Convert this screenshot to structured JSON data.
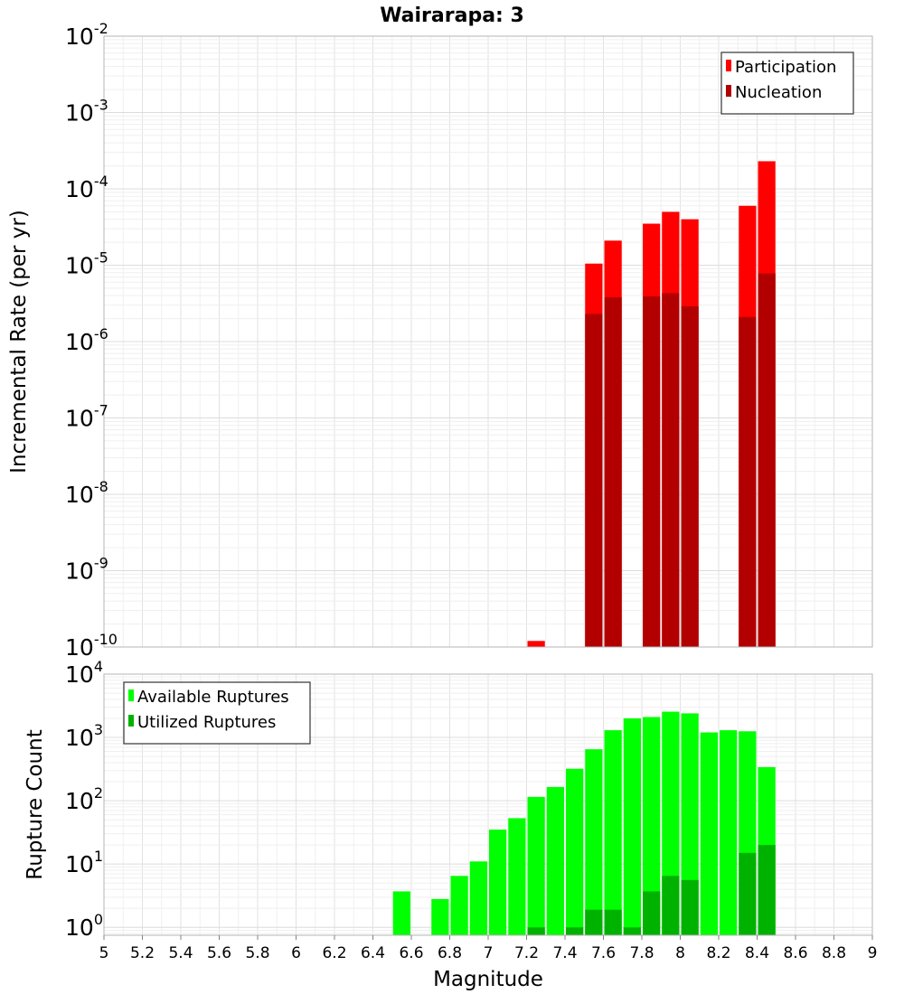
{
  "chart_data": {
    "title": "Wairarapa: 3",
    "xlabel": "Magnitude",
    "xlim": [
      5,
      9
    ],
    "x_ticks": [
      "5",
      "5.2",
      "5.4",
      "5.6",
      "5.8",
      "6",
      "6.2",
      "6.4",
      "6.6",
      "6.8",
      "7",
      "7.2",
      "7.4",
      "7.6",
      "7.8",
      "8",
      "8.2",
      "8.4",
      "8.6",
      "8.8",
      "9"
    ],
    "bin_width": 0.1,
    "grid": true,
    "panels": [
      {
        "type": "bar",
        "y_scale": "log",
        "ylabel": "Incremental Rate (per yr)",
        "ylim": [
          1e-10,
          0.01
        ],
        "y_ticks": [
          {
            "base": "10",
            "exp": "-10"
          },
          {
            "base": "10",
            "exp": "-9"
          },
          {
            "base": "10",
            "exp": "-8"
          },
          {
            "base": "10",
            "exp": "-7"
          },
          {
            "base": "10",
            "exp": "-6"
          },
          {
            "base": "10",
            "exp": "-5"
          },
          {
            "base": "10",
            "exp": "-4"
          },
          {
            "base": "10",
            "exp": "-3"
          },
          {
            "base": "10",
            "exp": "-2"
          }
        ],
        "legend_position": "top-right",
        "series": [
          {
            "name": "Participation",
            "color": "#ff0000",
            "x": [
              7.25,
              7.55,
              7.65,
              7.85,
              7.95,
              8.05,
              8.35,
              8.45
            ],
            "values": [
              1.2e-10,
              1.05e-05,
              2.1e-05,
              3.5e-05,
              5e-05,
              4e-05,
              6e-05,
              0.00023
            ]
          },
          {
            "name": "Nucleation",
            "color": "#b20000",
            "x": [
              7.55,
              7.65,
              7.85,
              7.95,
              8.05,
              8.35,
              8.45
            ],
            "values": [
              2.3e-06,
              3.8e-06,
              3.9e-06,
              4.3e-06,
              2.9e-06,
              2.1e-06,
              7.8e-06
            ]
          }
        ]
      },
      {
        "type": "bar",
        "y_scale": "log",
        "ylabel": "Rupture Count",
        "ylim": [
          0.75,
          10000
        ],
        "y_ticks": [
          {
            "base": "10",
            "exp": "0",
            "value": 1
          },
          {
            "base": "10",
            "exp": "1",
            "value": 10
          },
          {
            "base": "10",
            "exp": "2",
            "value": 100
          },
          {
            "base": "10",
            "exp": "3",
            "value": 1000
          },
          {
            "base": "10",
            "exp": "4",
            "value": 10000
          }
        ],
        "legend_position": "top-left",
        "series": [
          {
            "name": "Available Ruptures",
            "color": "#00ff00",
            "x": [
              6.55,
              6.75,
              6.85,
              6.95,
              7.05,
              7.15,
              7.25,
              7.35,
              7.45,
              7.55,
              7.65,
              7.75,
              7.85,
              7.95,
              8.05,
              8.15,
              8.25,
              8.35,
              8.45
            ],
            "values": [
              3.7,
              2.8,
              6.5,
              11,
              35,
              53,
              115,
              165,
              320,
              650,
              1300,
              2000,
              2100,
              2550,
              2400,
              1200,
              1300,
              1250,
              340
            ]
          },
          {
            "name": "Utilized Ruptures",
            "color": "#00b200",
            "x": [
              7.25,
              7.45,
              7.55,
              7.65,
              7.75,
              7.85,
              7.95,
              8.05,
              8.35,
              8.45
            ],
            "values": [
              1,
              1,
              1.9,
              1.9,
              1,
              3.7,
              6.5,
              5.6,
              15,
              20
            ]
          }
        ]
      }
    ]
  }
}
